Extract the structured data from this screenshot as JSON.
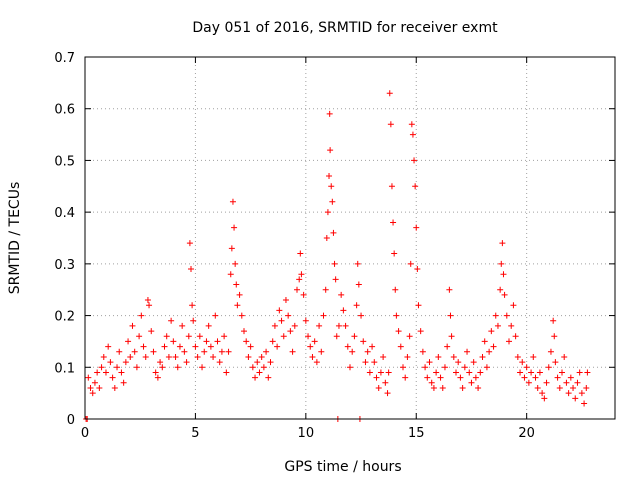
{
  "chart_data": {
    "type": "scatter",
    "title": "Day 051 of 2016, SRMTID for receiver exmt",
    "xlabel": "GPS time / hours",
    "ylabel": "SRMTID / TECUs",
    "xlim": [
      0,
      24
    ],
    "ylim": [
      0,
      0.7
    ],
    "grid": true,
    "marker": "+",
    "marker_color": "#ff0000",
    "xticks": [
      0,
      5,
      10,
      15,
      20
    ],
    "xtick_labels": [
      "0",
      "5",
      "10",
      "15",
      "20"
    ],
    "yticks": [
      0,
      0.1,
      0.2,
      0.3,
      0.4,
      0.5,
      0.6,
      0.7
    ],
    "ytick_labels": [
      "0",
      "0.1",
      "0.2",
      "0.3",
      "0.4",
      "0.5",
      "0.6",
      "0.7"
    ],
    "series": [
      {
        "name": "SRMTID",
        "points": [
          [
            0.05,
            0.0
          ],
          [
            0.1,
            0.0
          ],
          [
            0.15,
            0.08
          ],
          [
            0.25,
            0.06
          ],
          [
            0.35,
            0.05
          ],
          [
            0.45,
            0.07
          ],
          [
            0.55,
            0.09
          ],
          [
            0.65,
            0.06
          ],
          [
            0.75,
            0.1
          ],
          [
            0.85,
            0.12
          ],
          [
            0.95,
            0.09
          ],
          [
            1.05,
            0.14
          ],
          [
            1.15,
            0.11
          ],
          [
            1.25,
            0.08
          ],
          [
            1.35,
            0.06
          ],
          [
            1.45,
            0.1
          ],
          [
            1.55,
            0.13
          ],
          [
            1.65,
            0.09
          ],
          [
            1.75,
            0.07
          ],
          [
            1.85,
            0.11
          ],
          [
            1.95,
            0.15
          ],
          [
            2.05,
            0.12
          ],
          [
            2.15,
            0.18
          ],
          [
            2.25,
            0.13
          ],
          [
            2.35,
            0.1
          ],
          [
            2.45,
            0.16
          ],
          [
            2.55,
            0.2
          ],
          [
            2.65,
            0.14
          ],
          [
            2.75,
            0.12
          ],
          [
            2.85,
            0.23
          ],
          [
            2.9,
            0.22
          ],
          [
            3.0,
            0.17
          ],
          [
            3.1,
            0.13
          ],
          [
            3.2,
            0.09
          ],
          [
            3.3,
            0.08
          ],
          [
            3.4,
            0.11
          ],
          [
            3.5,
            0.1
          ],
          [
            3.6,
            0.14
          ],
          [
            3.7,
            0.16
          ],
          [
            3.8,
            0.12
          ],
          [
            3.9,
            0.19
          ],
          [
            4.0,
            0.15
          ],
          [
            4.1,
            0.12
          ],
          [
            4.2,
            0.1
          ],
          [
            4.3,
            0.14
          ],
          [
            4.4,
            0.18
          ],
          [
            4.5,
            0.13
          ],
          [
            4.6,
            0.11
          ],
          [
            4.7,
            0.16
          ],
          [
            4.75,
            0.34
          ],
          [
            4.8,
            0.29
          ],
          [
            4.85,
            0.22
          ],
          [
            4.9,
            0.19
          ],
          [
            5.0,
            0.14
          ],
          [
            5.1,
            0.12
          ],
          [
            5.2,
            0.16
          ],
          [
            5.3,
            0.1
          ],
          [
            5.4,
            0.13
          ],
          [
            5.5,
            0.15
          ],
          [
            5.6,
            0.18
          ],
          [
            5.7,
            0.14
          ],
          [
            5.8,
            0.12
          ],
          [
            5.9,
            0.2
          ],
          [
            6.0,
            0.15
          ],
          [
            6.1,
            0.11
          ],
          [
            6.2,
            0.13
          ],
          [
            6.3,
            0.16
          ],
          [
            6.4,
            0.09
          ],
          [
            6.5,
            0.13
          ],
          [
            6.6,
            0.28
          ],
          [
            6.65,
            0.33
          ],
          [
            6.7,
            0.42
          ],
          [
            6.75,
            0.37
          ],
          [
            6.8,
            0.3
          ],
          [
            6.85,
            0.26
          ],
          [
            6.9,
            0.22
          ],
          [
            7.0,
            0.24
          ],
          [
            7.1,
            0.2
          ],
          [
            7.2,
            0.17
          ],
          [
            7.3,
            0.15
          ],
          [
            7.4,
            0.12
          ],
          [
            7.5,
            0.14
          ],
          [
            7.6,
            0.1
          ],
          [
            7.7,
            0.08
          ],
          [
            7.8,
            0.11
          ],
          [
            7.9,
            0.09
          ],
          [
            8.0,
            0.12
          ],
          [
            8.1,
            0.1
          ],
          [
            8.2,
            0.13
          ],
          [
            8.3,
            0.08
          ],
          [
            8.4,
            0.11
          ],
          [
            8.5,
            0.15
          ],
          [
            8.6,
            0.18
          ],
          [
            8.7,
            0.14
          ],
          [
            8.8,
            0.21
          ],
          [
            8.9,
            0.19
          ],
          [
            9.0,
            0.16
          ],
          [
            9.1,
            0.23
          ],
          [
            9.2,
            0.2
          ],
          [
            9.3,
            0.17
          ],
          [
            9.4,
            0.13
          ],
          [
            9.5,
            0.18
          ],
          [
            9.6,
            0.25
          ],
          [
            9.7,
            0.27
          ],
          [
            9.75,
            0.32
          ],
          [
            9.8,
            0.28
          ],
          [
            9.9,
            0.24
          ],
          [
            10.0,
            0.19
          ],
          [
            10.1,
            0.16
          ],
          [
            10.2,
            0.14
          ],
          [
            10.3,
            0.12
          ],
          [
            10.4,
            0.15
          ],
          [
            10.5,
            0.11
          ],
          [
            10.6,
            0.18
          ],
          [
            10.7,
            0.13
          ],
          [
            10.8,
            0.2
          ],
          [
            10.9,
            0.25
          ],
          [
            10.95,
            0.35
          ],
          [
            11.0,
            0.4
          ],
          [
            11.05,
            0.47
          ],
          [
            11.08,
            0.59
          ],
          [
            11.1,
            0.52
          ],
          [
            11.15,
            0.45
          ],
          [
            11.2,
            0.42
          ],
          [
            11.25,
            0.36
          ],
          [
            11.3,
            0.3
          ],
          [
            11.35,
            0.27
          ],
          [
            11.4,
            0.16
          ],
          [
            11.45,
            0.0
          ],
          [
            11.5,
            0.18
          ],
          [
            11.6,
            0.24
          ],
          [
            11.7,
            0.21
          ],
          [
            11.8,
            0.18
          ],
          [
            11.9,
            0.14
          ],
          [
            12.0,
            0.1
          ],
          [
            12.1,
            0.13
          ],
          [
            12.2,
            0.16
          ],
          [
            12.3,
            0.22
          ],
          [
            12.35,
            0.3
          ],
          [
            12.4,
            0.26
          ],
          [
            12.45,
            0.0
          ],
          [
            12.5,
            0.2
          ],
          [
            12.6,
            0.15
          ],
          [
            12.7,
            0.11
          ],
          [
            12.8,
            0.13
          ],
          [
            12.9,
            0.09
          ],
          [
            13.0,
            0.14
          ],
          [
            13.1,
            0.11
          ],
          [
            13.2,
            0.08
          ],
          [
            13.3,
            0.06
          ],
          [
            13.4,
            0.09
          ],
          [
            13.5,
            0.12
          ],
          [
            13.6,
            0.07
          ],
          [
            13.7,
            0.05
          ],
          [
            13.75,
            0.09
          ],
          [
            13.8,
            0.63
          ],
          [
            13.85,
            0.57
          ],
          [
            13.9,
            0.45
          ],
          [
            13.95,
            0.38
          ],
          [
            14.0,
            0.32
          ],
          [
            14.05,
            0.25
          ],
          [
            14.1,
            0.2
          ],
          [
            14.2,
            0.17
          ],
          [
            14.3,
            0.14
          ],
          [
            14.4,
            0.1
          ],
          [
            14.5,
            0.08
          ],
          [
            14.6,
            0.12
          ],
          [
            14.7,
            0.16
          ],
          [
            14.75,
            0.3
          ],
          [
            14.8,
            0.57
          ],
          [
            14.85,
            0.55
          ],
          [
            14.9,
            0.5
          ],
          [
            14.95,
            0.45
          ],
          [
            15.0,
            0.37
          ],
          [
            15.05,
            0.29
          ],
          [
            15.1,
            0.22
          ],
          [
            15.2,
            0.17
          ],
          [
            15.3,
            0.13
          ],
          [
            15.4,
            0.1
          ],
          [
            15.5,
            0.08
          ],
          [
            15.6,
            0.11
          ],
          [
            15.7,
            0.07
          ],
          [
            15.8,
            0.06
          ],
          [
            15.9,
            0.09
          ],
          [
            16.0,
            0.12
          ],
          [
            16.1,
            0.08
          ],
          [
            16.2,
            0.06
          ],
          [
            16.3,
            0.1
          ],
          [
            16.4,
            0.14
          ],
          [
            16.5,
            0.25
          ],
          [
            16.55,
            0.2
          ],
          [
            16.6,
            0.16
          ],
          [
            16.7,
            0.12
          ],
          [
            16.8,
            0.09
          ],
          [
            16.9,
            0.11
          ],
          [
            17.0,
            0.08
          ],
          [
            17.1,
            0.06
          ],
          [
            17.2,
            0.1
          ],
          [
            17.3,
            0.13
          ],
          [
            17.4,
            0.09
          ],
          [
            17.5,
            0.07
          ],
          [
            17.6,
            0.11
          ],
          [
            17.7,
            0.08
          ],
          [
            17.8,
            0.06
          ],
          [
            17.9,
            0.09
          ],
          [
            18.0,
            0.12
          ],
          [
            18.1,
            0.15
          ],
          [
            18.2,
            0.1
          ],
          [
            18.3,
            0.13
          ],
          [
            18.4,
            0.17
          ],
          [
            18.5,
            0.14
          ],
          [
            18.6,
            0.2
          ],
          [
            18.7,
            0.18
          ],
          [
            18.8,
            0.25
          ],
          [
            18.85,
            0.3
          ],
          [
            18.9,
            0.34
          ],
          [
            18.95,
            0.28
          ],
          [
            19.0,
            0.24
          ],
          [
            19.1,
            0.2
          ],
          [
            19.2,
            0.15
          ],
          [
            19.3,
            0.18
          ],
          [
            19.4,
            0.22
          ],
          [
            19.5,
            0.16
          ],
          [
            19.6,
            0.12
          ],
          [
            19.7,
            0.09
          ],
          [
            19.8,
            0.11
          ],
          [
            19.9,
            0.08
          ],
          [
            20.0,
            0.1
          ],
          [
            20.1,
            0.07
          ],
          [
            20.2,
            0.09
          ],
          [
            20.3,
            0.12
          ],
          [
            20.4,
            0.08
          ],
          [
            20.5,
            0.06
          ],
          [
            20.6,
            0.09
          ],
          [
            20.7,
            0.05
          ],
          [
            20.8,
            0.04
          ],
          [
            20.9,
            0.07
          ],
          [
            21.0,
            0.1
          ],
          [
            21.1,
            0.13
          ],
          [
            21.2,
            0.19
          ],
          [
            21.25,
            0.16
          ],
          [
            21.3,
            0.11
          ],
          [
            21.4,
            0.08
          ],
          [
            21.5,
            0.06
          ],
          [
            21.6,
            0.09
          ],
          [
            21.7,
            0.12
          ],
          [
            21.8,
            0.07
          ],
          [
            21.9,
            0.05
          ],
          [
            22.0,
            0.08
          ],
          [
            22.1,
            0.06
          ],
          [
            22.2,
            0.04
          ],
          [
            22.3,
            0.07
          ],
          [
            22.4,
            0.09
          ],
          [
            22.5,
            0.05
          ],
          [
            22.6,
            0.03
          ],
          [
            22.7,
            0.06
          ],
          [
            22.75,
            0.09
          ]
        ]
      }
    ]
  }
}
